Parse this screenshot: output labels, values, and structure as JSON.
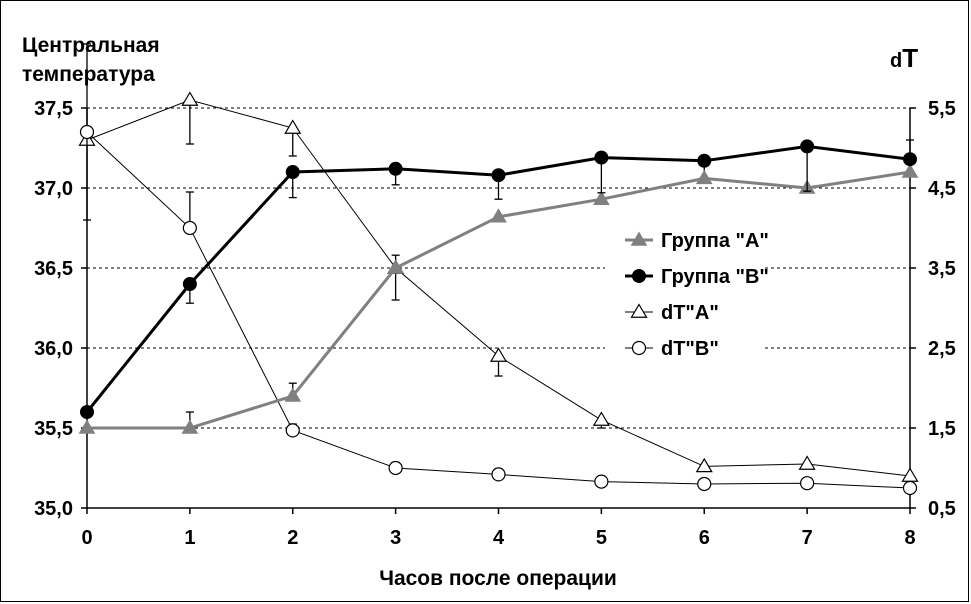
{
  "chart_data": {
    "type": "line",
    "ylabel_left_line1": "Центральная",
    "ylabel_left_line2": "температура",
    "ylabel_right_prefix": "d",
    "ylabel_right_main": "T",
    "xlabel": "Часов после операции",
    "x": [
      0,
      1,
      2,
      3,
      4,
      5,
      6,
      7,
      8
    ],
    "x_tick_labels": [
      "0",
      "1",
      "2",
      "3",
      "4",
      "5",
      "6",
      "7",
      "8"
    ],
    "y_left_ticks": [
      35.0,
      35.5,
      36.0,
      36.5,
      37.0,
      37.5
    ],
    "y_left_tick_labels": [
      "35,0",
      "35,5",
      "36,0",
      "36,5",
      "37,0",
      "37,5"
    ],
    "y_right_ticks": [
      0.5,
      1.5,
      2.5,
      3.5,
      4.5,
      5.5
    ],
    "y_right_tick_labels": [
      "0,5",
      "1,5",
      "2,5",
      "3,5",
      "4,5",
      "5,5"
    ],
    "ylim_left": [
      35.0,
      37.5
    ],
    "ylim_right": [
      0.5,
      5.5
    ],
    "grid": "horizontal dashed",
    "legend_position": "center-right",
    "series": [
      {
        "name": "Группа \"A\"",
        "axis": "left",
        "marker": "triangle-filled",
        "color": "#808080",
        "values": [
          35.5,
          35.5,
          35.7,
          36.5,
          36.82,
          36.93,
          37.06,
          37.0,
          37.1
        ],
        "err_up": [
          0,
          0.1,
          0.08,
          0.08,
          0,
          0,
          0.12,
          0,
          0.2
        ]
      },
      {
        "name": "Группа \"B\"",
        "axis": "left",
        "marker": "circle-filled",
        "color": "#000000",
        "values": [
          35.6,
          36.4,
          37.1,
          37.12,
          37.08,
          37.19,
          37.17,
          37.26,
          37.18
        ],
        "err_down": [
          0,
          0.12,
          0.16,
          0.1,
          0.15,
          0.22,
          0,
          0.28,
          0
        ]
      },
      {
        "name": "dT\"A\"",
        "axis": "right",
        "marker": "triangle-open",
        "color": "#000000",
        "values": [
          5.1,
          5.6,
          5.25,
          3.5,
          2.4,
          1.6,
          1.02,
          1.05,
          0.9
        ],
        "err_up": [
          0,
          0,
          0,
          0,
          0,
          0,
          0,
          0,
          0
        ],
        "err_down": [
          0,
          0.55,
          0.35,
          0.4,
          0.25,
          0.1,
          0,
          0,
          0
        ]
      },
      {
        "name": "dT\"B\"",
        "axis": "right",
        "marker": "circle-open",
        "color": "#000000",
        "values": [
          5.2,
          4.0,
          1.47,
          1.0,
          0.92,
          0.83,
          0.8,
          0.81,
          0.75
        ],
        "err_up": [
          1.1,
          0.45,
          0.08,
          0.07,
          0.07,
          0,
          0,
          0,
          0
        ],
        "err_down": [
          1.1,
          0,
          0,
          0,
          0,
          0,
          0,
          0,
          0
        ]
      }
    ]
  }
}
